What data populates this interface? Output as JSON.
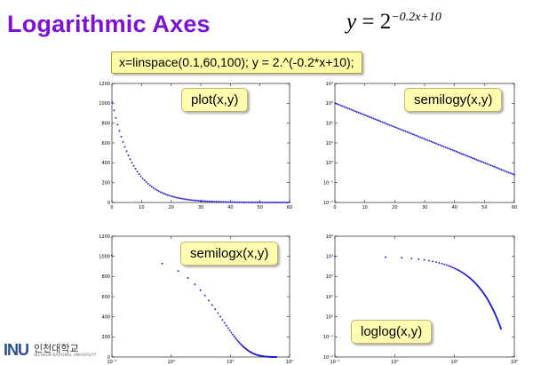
{
  "slide": {
    "title": "Logarithmic Axes",
    "formula": {
      "lhs": "y",
      "eq": "=",
      "base": "2",
      "exponent": "−0.2x+10"
    },
    "code": "x=linspace(0.1,60,100);  y = 2.^(-0.2*x+10);"
  },
  "labels": {
    "plot": "plot(x,y)",
    "semilogy": "semilogy(x,y)",
    "semilogx": "semilogx(x,y)",
    "loglog": "loglog(x,y)"
  },
  "logo": {
    "mark": "INU",
    "name": "인천대학교",
    "sub": "INCHEON NATIONAL UNIVERSITY"
  },
  "colors": {
    "title": "#7d12d6",
    "data": "#1d1dd6",
    "label_bg": "#fffdb0"
  },
  "chart_data": [
    {
      "type": "scatter",
      "scale": "linear-linear",
      "xlim": [
        0,
        60
      ],
      "ylim": [
        0,
        1200
      ],
      "x_ticks": [
        "0",
        "10",
        "20",
        "30",
        "40",
        "50",
        "60"
      ],
      "y_ticks": [
        "0",
        "200",
        "400",
        "600",
        "800",
        "1000",
        "1200"
      ],
      "x": {
        "start": 0.1,
        "stop": 60,
        "count": 100
      },
      "y_formula": "2^(-0.2x+10)"
    },
    {
      "type": "scatter",
      "scale": "linear-log",
      "xlim": [
        0,
        60
      ],
      "ylim": [
        0.01,
        10000
      ],
      "x_ticks": [
        "0",
        "10",
        "20",
        "30",
        "40",
        "50",
        "60"
      ],
      "y_ticks": [
        "10⁻²",
        "10⁻¹",
        "10⁰",
        "10¹",
        "10²",
        "10³",
        "10⁴"
      ],
      "x": {
        "start": 0.1,
        "stop": 60,
        "count": 100
      },
      "y_formula": "2^(-0.2x+10)"
    },
    {
      "type": "scatter",
      "scale": "log-linear",
      "xlim": [
        0.1,
        100
      ],
      "ylim": [
        0,
        1200
      ],
      "x_ticks": [
        "10⁻¹",
        "10⁰",
        "10¹",
        "10²"
      ],
      "y_ticks": [
        "0",
        "200",
        "400",
        "600",
        "800",
        "1000",
        "1200"
      ],
      "x": {
        "start": 0.1,
        "stop": 60,
        "count": 100
      },
      "y_formula": "2^(-0.2x+10)"
    },
    {
      "type": "scatter",
      "scale": "log-log",
      "xlim": [
        0.1,
        100
      ],
      "ylim": [
        0.01,
        10000
      ],
      "x_ticks": [
        "10⁻¹",
        "10⁰",
        "10¹",
        "10²"
      ],
      "y_ticks": [
        "10⁻²",
        "10⁻¹",
        "10⁰",
        "10¹",
        "10²",
        "10³",
        "10⁴"
      ],
      "x": {
        "start": 0.1,
        "stop": 60,
        "count": 100
      },
      "y_formula": "2^(-0.2x+10)"
    }
  ]
}
